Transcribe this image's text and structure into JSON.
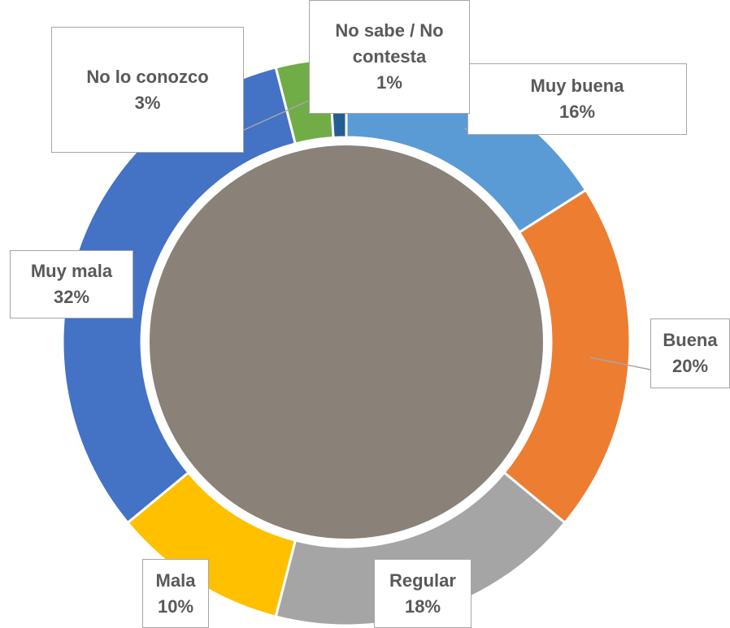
{
  "chart_data": {
    "type": "donut",
    "categories": [
      "Muy buena",
      "Buena",
      "Regular",
      "Mala",
      "Muy mala",
      "No lo conozco",
      "No sabe / No contesta"
    ],
    "values": [
      16,
      20,
      18,
      10,
      32,
      3,
      1
    ],
    "value_labels": [
      "16%",
      "20%",
      "18%",
      "10%",
      "32%",
      "3%",
      "1%"
    ],
    "colors": [
      "#5b9bd5",
      "#ed7d31",
      "#a5a5a5",
      "#ffc000",
      "#4472c4",
      "#70ad47",
      "#255e91"
    ]
  }
}
